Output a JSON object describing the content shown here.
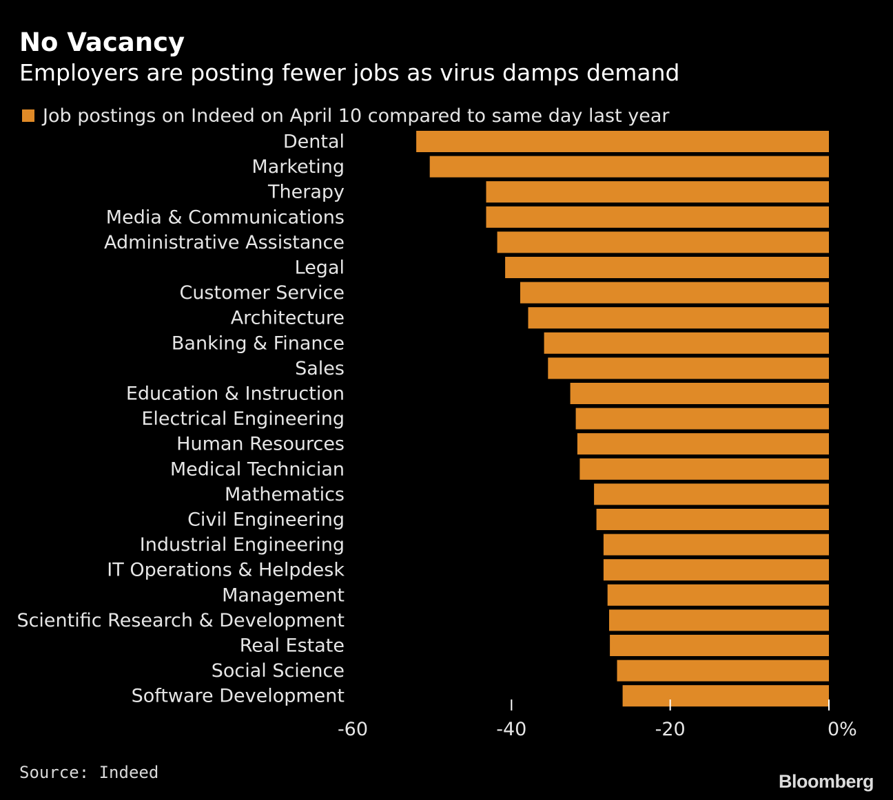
{
  "colors": {
    "background": "#000000",
    "bar": "#e08a27",
    "text": "#ffffff",
    "axis": "#ffffff"
  },
  "chart_data": {
    "type": "bar",
    "orientation": "horizontal",
    "title": "No Vacancy",
    "subtitle": "Employers are posting fewer jobs as virus damps demand",
    "legend": "Job postings on Indeed on April 10 compared to same day last year",
    "legend_position": "top-left",
    "categories": [
      "Dental",
      "Marketing",
      "Therapy",
      "Media & Communications",
      "Administrative Assistance",
      "Legal",
      "Customer Service",
      "Architecture",
      "Banking & Finance",
      "Sales",
      "Education & Instruction",
      "Electrical Engineering",
      "Human Resources",
      "Medical Technician",
      "Mathematics",
      "Civil Engineering",
      "Industrial Engineering",
      "IT Operations & Helpdesk",
      "Management",
      "Scientific Research & Development",
      "Real Estate",
      "Social Science",
      "Software Development"
    ],
    "values": [
      -52,
      -50.3,
      -43.2,
      -43.2,
      -41.8,
      -40.8,
      -38.9,
      -37.9,
      -35.9,
      -35.4,
      -32.6,
      -31.9,
      -31.7,
      -31.4,
      -29.6,
      -29.3,
      -28.4,
      -28.4,
      -27.9,
      -27.7,
      -27.6,
      -26.7,
      -26
    ],
    "xlim": [
      -60,
      0
    ],
    "ticks": [
      -60,
      -40,
      -20,
      0
    ],
    "tick_labels": [
      "-60",
      "-40",
      "-20",
      "0%"
    ],
    "grid": false,
    "source": "Source: Indeed"
  },
  "brand": "Bloomberg"
}
